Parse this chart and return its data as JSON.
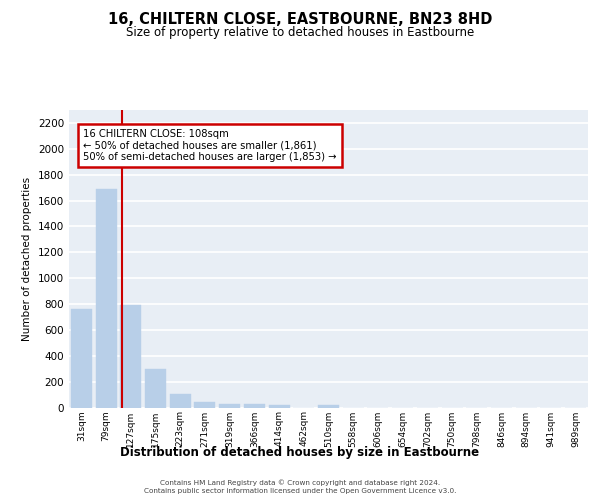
{
  "title": "16, CHILTERN CLOSE, EASTBOURNE, BN23 8HD",
  "subtitle": "Size of property relative to detached houses in Eastbourne",
  "xlabel": "Distribution of detached houses by size in Eastbourne",
  "ylabel": "Number of detached properties",
  "categories": [
    "31sqm",
    "79sqm",
    "127sqm",
    "175sqm",
    "223sqm",
    "271sqm",
    "319sqm",
    "366sqm",
    "414sqm",
    "462sqm",
    "510sqm",
    "558sqm",
    "606sqm",
    "654sqm",
    "702sqm",
    "750sqm",
    "798sqm",
    "846sqm",
    "894sqm",
    "941sqm",
    "989sqm"
  ],
  "values": [
    760,
    1690,
    790,
    295,
    108,
    42,
    30,
    25,
    20,
    0,
    22,
    0,
    0,
    0,
    0,
    0,
    0,
    0,
    0,
    0,
    0
  ],
  "bar_color": "#b8cfe8",
  "bar_edgecolor": "#b8cfe8",
  "vline_x_index": 1.63,
  "vline_color": "#cc0000",
  "annotation_line1": "16 CHILTERN CLOSE: 108sqm",
  "annotation_line2": "← 50% of detached houses are smaller (1,861)",
  "annotation_line3": "50% of semi-detached houses are larger (1,853) →",
  "ylim": [
    0,
    2300
  ],
  "yticks": [
    0,
    200,
    400,
    600,
    800,
    1000,
    1200,
    1400,
    1600,
    1800,
    2000,
    2200
  ],
  "background_color": "#e8eef5",
  "grid_color": "#ffffff",
  "footer_line1": "Contains HM Land Registry data © Crown copyright and database right 2024.",
  "footer_line2": "Contains public sector information licensed under the Open Government Licence v3.0."
}
